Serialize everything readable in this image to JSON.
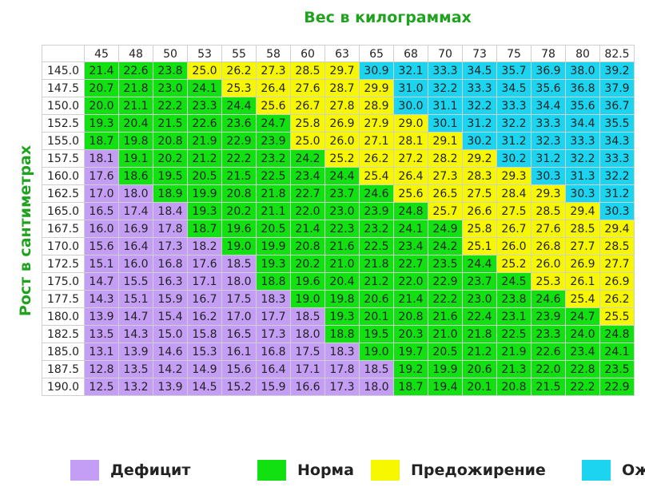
{
  "chart_data": {
    "type": "table",
    "title": "Вес в килограммах",
    "ylabel": "Рост в сантиметрах",
    "columns": [
      "45",
      "48",
      "50",
      "53",
      "55",
      "58",
      "60",
      "63",
      "65",
      "68",
      "70",
      "73",
      "75",
      "78",
      "80",
      "82.5"
    ],
    "rows": [
      {
        "height": "145.0",
        "values": [
          "21.4",
          "22.6",
          "23.8",
          "25.0",
          "26.2",
          "27.3",
          "28.5",
          "29.7",
          "30.9",
          "32.1",
          "33.3",
          "34.5",
          "35.7",
          "36.9",
          "38.0",
          "39.2"
        ],
        "cats": [
          1,
          1,
          1,
          2,
          2,
          2,
          2,
          2,
          3,
          3,
          3,
          3,
          3,
          3,
          3,
          3
        ]
      },
      {
        "height": "147.5",
        "values": [
          "20.7",
          "21.8",
          "23.0",
          "24.1",
          "25.3",
          "26.4",
          "27.6",
          "28.7",
          "29.9",
          "31.0",
          "32.2",
          "33.3",
          "34.5",
          "35.6",
          "36.8",
          "37.9"
        ],
        "cats": [
          1,
          1,
          1,
          1,
          2,
          2,
          2,
          2,
          2,
          3,
          3,
          3,
          3,
          3,
          3,
          3
        ]
      },
      {
        "height": "150.0",
        "values": [
          "20.0",
          "21.1",
          "22.2",
          "23.3",
          "24.4",
          "25.6",
          "26.7",
          "27.8",
          "28.9",
          "30.0",
          "31.1",
          "32.2",
          "33.3",
          "34.4",
          "35.6",
          "36.7"
        ],
        "cats": [
          1,
          1,
          1,
          1,
          1,
          2,
          2,
          2,
          2,
          3,
          3,
          3,
          3,
          3,
          3,
          3
        ]
      },
      {
        "height": "152.5",
        "values": [
          "19.3",
          "20.4",
          "21.5",
          "22.6",
          "23.6",
          "24.7",
          "25.8",
          "26.9",
          "27.9",
          "29.0",
          "30.1",
          "31.2",
          "32.2",
          "33.3",
          "34.4",
          "35.5"
        ],
        "cats": [
          1,
          1,
          1,
          1,
          1,
          1,
          2,
          2,
          2,
          2,
          3,
          3,
          3,
          3,
          3,
          3
        ]
      },
      {
        "height": "155.0",
        "values": [
          "18.7",
          "19.8",
          "20.8",
          "21.9",
          "22.9",
          "23.9",
          "25.0",
          "26.0",
          "27.1",
          "28.1",
          "29.1",
          "30.2",
          "31.2",
          "32.3",
          "33.3",
          "34.3"
        ],
        "cats": [
          1,
          1,
          1,
          1,
          1,
          1,
          2,
          2,
          2,
          2,
          2,
          3,
          3,
          3,
          3,
          3
        ]
      },
      {
        "height": "157.5",
        "values": [
          "18.1",
          "19.1",
          "20.2",
          "21.2",
          "22.2",
          "23.2",
          "24.2",
          "25.2",
          "26.2",
          "27.2",
          "28.2",
          "29.2",
          "30.2",
          "31.2",
          "32.2",
          "33.3"
        ],
        "cats": [
          0,
          1,
          1,
          1,
          1,
          1,
          1,
          2,
          2,
          2,
          2,
          2,
          3,
          3,
          3,
          3
        ]
      },
      {
        "height": "160.0",
        "values": [
          "17.6",
          "18.6",
          "19.5",
          "20.5",
          "21.5",
          "22.5",
          "23.4",
          "24.4",
          "25.4",
          "26.4",
          "27.3",
          "28.3",
          "29.3",
          "30.3",
          "31.3",
          "32.2"
        ],
        "cats": [
          0,
          1,
          1,
          1,
          1,
          1,
          1,
          1,
          2,
          2,
          2,
          2,
          2,
          3,
          3,
          3
        ]
      },
      {
        "height": "162.5",
        "values": [
          "17.0",
          "18.0",
          "18.9",
          "19.9",
          "20.8",
          "21.8",
          "22.7",
          "23.7",
          "24.6",
          "25.6",
          "26.5",
          "27.5",
          "28.4",
          "29.3",
          "30.3",
          "31.2"
        ],
        "cats": [
          0,
          0,
          1,
          1,
          1,
          1,
          1,
          1,
          1,
          2,
          2,
          2,
          2,
          2,
          3,
          3
        ]
      },
      {
        "height": "165.0",
        "values": [
          "16.5",
          "17.4",
          "18.4",
          "19.3",
          "20.2",
          "21.1",
          "22.0",
          "23.0",
          "23.9",
          "24.8",
          "25.7",
          "26.6",
          "27.5",
          "28.5",
          "29.4",
          "30.3"
        ],
        "cats": [
          0,
          0,
          0,
          1,
          1,
          1,
          1,
          1,
          1,
          1,
          2,
          2,
          2,
          2,
          2,
          3
        ]
      },
      {
        "height": "167.5",
        "values": [
          "16.0",
          "16.9",
          "17.8",
          "18.7",
          "19.6",
          "20.5",
          "21.4",
          "22.3",
          "23.2",
          "24.1",
          "24.9",
          "25.8",
          "26.7",
          "27.6",
          "28.5",
          "29.4"
        ],
        "cats": [
          0,
          0,
          0,
          1,
          1,
          1,
          1,
          1,
          1,
          1,
          1,
          2,
          2,
          2,
          2,
          2
        ]
      },
      {
        "height": "170.0",
        "values": [
          "15.6",
          "16.4",
          "17.3",
          "18.2",
          "19.0",
          "19.9",
          "20.8",
          "21.6",
          "22.5",
          "23.4",
          "24.2",
          "25.1",
          "26.0",
          "26.8",
          "27.7",
          "28.5"
        ],
        "cats": [
          0,
          0,
          0,
          0,
          1,
          1,
          1,
          1,
          1,
          1,
          1,
          2,
          2,
          2,
          2,
          2
        ]
      },
      {
        "height": "172.5",
        "values": [
          "15.1",
          "16.0",
          "16.8",
          "17.6",
          "18.5",
          "19.3",
          "20.2",
          "21.0",
          "21.8",
          "22.7",
          "23.5",
          "24.4",
          "25.2",
          "26.0",
          "26.9",
          "27.7"
        ],
        "cats": [
          0,
          0,
          0,
          0,
          0,
          1,
          1,
          1,
          1,
          1,
          1,
          1,
          2,
          2,
          2,
          2
        ]
      },
      {
        "height": "175.0",
        "values": [
          "14.7",
          "15.5",
          "16.3",
          "17.1",
          "18.0",
          "18.8",
          "19.6",
          "20.4",
          "21.2",
          "22.0",
          "22.9",
          "23.7",
          "24.5",
          "25.3",
          "26.1",
          "26.9"
        ],
        "cats": [
          0,
          0,
          0,
          0,
          0,
          1,
          1,
          1,
          1,
          1,
          1,
          1,
          1,
          2,
          2,
          2
        ]
      },
      {
        "height": "177.5",
        "values": [
          "14.3",
          "15.1",
          "15.9",
          "16.7",
          "17.5",
          "18.3",
          "19.0",
          "19.8",
          "20.6",
          "21.4",
          "22.2",
          "23.0",
          "23.8",
          "24.6",
          "25.4",
          "26.2"
        ],
        "cats": [
          0,
          0,
          0,
          0,
          0,
          0,
          1,
          1,
          1,
          1,
          1,
          1,
          1,
          1,
          2,
          2
        ]
      },
      {
        "height": "180.0",
        "values": [
          "13.9",
          "14.7",
          "15.4",
          "16.2",
          "17.0",
          "17.7",
          "18.5",
          "19.3",
          "20.1",
          "20.8",
          "21.6",
          "22.4",
          "23.1",
          "23.9",
          "24.7",
          "25.5"
        ],
        "cats": [
          0,
          0,
          0,
          0,
          0,
          0,
          0,
          1,
          1,
          1,
          1,
          1,
          1,
          1,
          1,
          2
        ]
      },
      {
        "height": "182.5",
        "values": [
          "13.5",
          "14.3",
          "15.0",
          "15.8",
          "16.5",
          "17.3",
          "18.0",
          "18.8",
          "19.5",
          "20.3",
          "21.0",
          "21.8",
          "22.5",
          "23.3",
          "24.0",
          "24.8"
        ],
        "cats": [
          0,
          0,
          0,
          0,
          0,
          0,
          0,
          1,
          1,
          1,
          1,
          1,
          1,
          1,
          1,
          1
        ]
      },
      {
        "height": "185.0",
        "values": [
          "13.1",
          "13.9",
          "14.6",
          "15.3",
          "16.1",
          "16.8",
          "17.5",
          "18.3",
          "19.0",
          "19.7",
          "20.5",
          "21.2",
          "21.9",
          "22.6",
          "23.4",
          "24.1"
        ],
        "cats": [
          0,
          0,
          0,
          0,
          0,
          0,
          0,
          0,
          1,
          1,
          1,
          1,
          1,
          1,
          1,
          1
        ]
      },
      {
        "height": "187.5",
        "values": [
          "12.8",
          "13.5",
          "14.2",
          "14.9",
          "15.6",
          "16.4",
          "17.1",
          "17.8",
          "18.5",
          "19.2",
          "19.9",
          "20.6",
          "21.3",
          "22.0",
          "22.8",
          "23.5"
        ],
        "cats": [
          0,
          0,
          0,
          0,
          0,
          0,
          0,
          0,
          0,
          1,
          1,
          1,
          1,
          1,
          1,
          1
        ]
      },
      {
        "height": "190.0",
        "values": [
          "12.5",
          "13.2",
          "13.9",
          "14.5",
          "15.2",
          "15.9",
          "16.6",
          "17.3",
          "18.0",
          "18.7",
          "19.4",
          "20.1",
          "20.8",
          "21.5",
          "22.2",
          "22.9"
        ],
        "cats": [
          0,
          0,
          0,
          0,
          0,
          0,
          0,
          0,
          0,
          1,
          1,
          1,
          1,
          1,
          1,
          1
        ]
      }
    ],
    "legend": [
      {
        "label": "Дефицит",
        "color": "#c49df5"
      },
      {
        "label": "Норма",
        "color": "#11e011"
      },
      {
        "label": "Предожирение",
        "color": "#f7f700"
      },
      {
        "label": "Ож",
        "color": "#1ad4f0"
      }
    ]
  }
}
